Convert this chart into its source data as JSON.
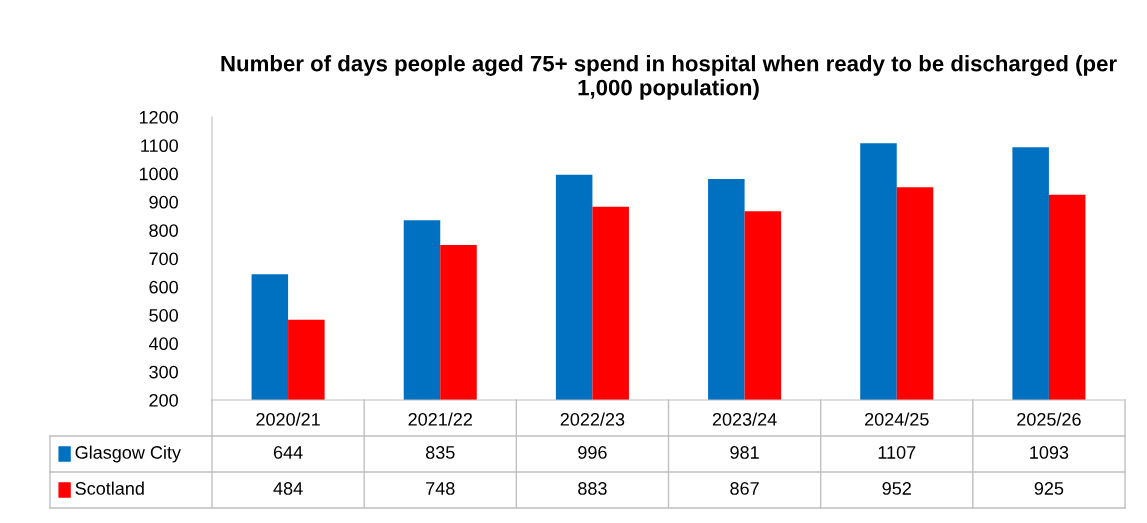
{
  "chart_data": {
    "type": "bar",
    "title": "Number of days people aged 75+ spend in hospital when ready to be discharged (per 1,000 population)",
    "categories": [
      "2020/21",
      "2021/22",
      "2022/23",
      "2023/24",
      "2024/25",
      "2025/26"
    ],
    "series": [
      {
        "name": "Glasgow City",
        "color": "#0070c0",
        "values": [
          644,
          835,
          996,
          981,
          1107,
          1093
        ]
      },
      {
        "name": "Scotland",
        "color": "#ff0000",
        "values": [
          484,
          748,
          883,
          867,
          952,
          925
        ]
      }
    ],
    "ylim": [
      200,
      1200
    ],
    "yticks": [
      200,
      300,
      400,
      500,
      600,
      700,
      800,
      900,
      1000,
      1100,
      1200
    ],
    "grid": false,
    "legend": "bottom left",
    "data_labels": true
  }
}
